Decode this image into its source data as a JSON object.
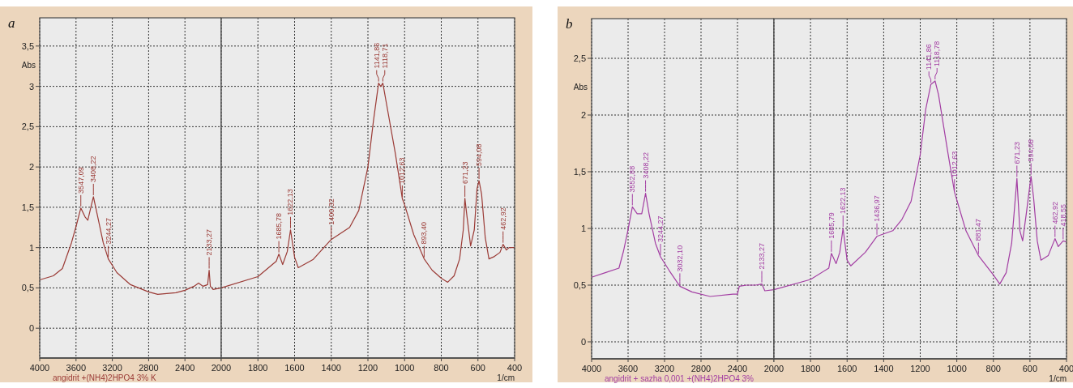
{
  "chart_data": [
    {
      "type": "line",
      "title": "a",
      "ylabel": "Abs",
      "grid": true,
      "xlim": [
        4000,
        2000
      ],
      "xticks": [
        4000,
        3600,
        3200,
        2800,
        2400,
        {
          "value": 2000,
          "label": null
        }
      ],
      "ylim": [
        -0.37,
        3.85
      ],
      "yticks": [
        0,
        {
          "value": 0.5,
          "label": "0,5"
        },
        1,
        {
          "value": 1.5,
          "label": "1,5"
        },
        2,
        {
          "value": 2.5,
          "label": "2,5"
        },
        3,
        {
          "value": 3.5,
          "label": "3,5"
        }
      ],
      "series": [
        {
          "name": "angidrit +(NH4)2HPO4 3% K",
          "color": "#9b3b36",
          "x": [
            4000,
            3850,
            3750,
            3650,
            3600,
            3547.09,
            3500,
            3470,
            3430,
            3408.22,
            3370,
            3300,
            3244.27,
            3150,
            3000,
            2800,
            2700,
            2500,
            2400,
            2300,
            2250,
            2200,
            2150,
            2133.27,
            2120,
            2090,
            2000
          ],
          "values": [
            0.6,
            0.65,
            0.74,
            1.06,
            1.26,
            1.49,
            1.38,
            1.34,
            1.53,
            1.63,
            1.43,
            1.06,
            0.86,
            0.69,
            0.54,
            0.45,
            0.42,
            0.44,
            0.47,
            0.52,
            0.56,
            0.52,
            0.54,
            0.72,
            0.52,
            0.48,
            0.5
          ]
        }
      ],
      "annotations": [
        {
          "text": "3547,09",
          "x": 3547.09,
          "y": 1.49
        },
        {
          "text": "3408,22",
          "x": 3408.22,
          "y": 1.63
        },
        {
          "text": "3244,27",
          "x": 3244.27,
          "y": 0.86
        },
        {
          "text": "2133,27",
          "x": 2133.27,
          "y": 0.72
        }
      ]
    },
    {
      "type": "line",
      "xlabel": "1/cm",
      "grid": true,
      "tick_labels": "x",
      "xlim": [
        2000,
        400
      ],
      "xticks": [
        2000,
        1800,
        1600,
        1400,
        1200,
        1000,
        800,
        600,
        400
      ],
      "ylim": [
        -0.37,
        3.85
      ],
      "yticks": [
        {
          "value": 0,
          "label": null
        },
        {
          "value": 0.5,
          "label": null
        },
        {
          "value": 1,
          "label": null
        },
        {
          "value": 1.5,
          "label": null
        },
        {
          "value": 2,
          "label": null
        },
        {
          "value": 2.5,
          "label": null
        },
        {
          "value": 3,
          "label": null
        },
        {
          "value": 3.5,
          "label": null
        }
      ],
      "series": [
        {
          "color": "#9b3b36",
          "x": [
            2000,
            1800,
            1700,
            1685.78,
            1665,
            1640,
            1622.13,
            1600,
            1580,
            1500,
            1400.32,
            1300,
            1250,
            1200,
            1170,
            1141.86,
            1130,
            1118.71,
            1100,
            1050,
            1012.63,
            1000,
            950,
            893.4,
            850,
            800,
            765,
            730,
            700,
            680,
            671.23,
            660,
            640,
            620,
            605,
            594.08,
            580,
            560,
            540,
            510,
            480,
            462.92,
            445,
            430,
            400
          ],
          "values": [
            0.5,
            0.64,
            0.83,
            0.92,
            0.79,
            0.95,
            1.22,
            0.88,
            0.75,
            0.85,
            1.1,
            1.25,
            1.46,
            2.0,
            2.57,
            3.04,
            3.0,
            3.04,
            2.8,
            2.16,
            1.61,
            1.53,
            1.16,
            0.86,
            0.72,
            0.62,
            0.57,
            0.65,
            0.86,
            1.22,
            1.61,
            1.39,
            1.02,
            1.22,
            1.73,
            1.83,
            1.66,
            1.12,
            0.86,
            0.89,
            0.94,
            1.04,
            0.97,
            1.0,
            1.0
          ]
        }
      ],
      "annotations": [
        {
          "text": "1685,78",
          "x": 1685.78,
          "y": 0.92
        },
        {
          "text": "1622,13",
          "x": 1622.13,
          "y": 1.22
        },
        {
          "text": "1400,32",
          "x": 1400.32,
          "y": 1.1
        },
        {
          "text": "1141,86",
          "x": 1141.86,
          "y": 3.04
        },
        {
          "text": "1118,71",
          "x": 1118.71,
          "y": 3.04
        },
        {
          "text": "1012,63",
          "x": 1012.63,
          "y": 1.61
        },
        {
          "text": "893,40",
          "x": 893.4,
          "y": 0.86
        },
        {
          "text": "671,23",
          "x": 671.23,
          "y": 1.61
        },
        {
          "text": "594,08",
          "x": 594.08,
          "y": 1.83
        },
        {
          "text": "462,92",
          "x": 462.92,
          "y": 1.04
        }
      ]
    },
    {
      "type": "line",
      "title": "b",
      "ylabel": "Abs",
      "grid": true,
      "xlim": [
        4000,
        2000
      ],
      "xticks": [
        4000,
        3600,
        3200,
        2800,
        2400,
        {
          "value": 2000,
          "label": null
        }
      ],
      "ylim": [
        -0.15,
        2.85
      ],
      "yticks": [
        0,
        {
          "value": 0.5,
          "label": "0,5"
        },
        1,
        {
          "value": 1.5,
          "label": "1,5"
        },
        2,
        {
          "value": 2.5,
          "label": "2,5"
        }
      ],
      "series": [
        {
          "name": "angidrit + sazha 0,001 +(NH4)2HPO4 3%",
          "color": "#a33ea3",
          "x": [
            4000,
            3850,
            3700,
            3650,
            3600,
            3552.88,
            3500,
            3450,
            3408.22,
            3370,
            3300,
            3244.27,
            3150,
            3032.1,
            2900,
            2700,
            2450,
            2400,
            2380,
            2300,
            2200,
            2133.27,
            2100,
            2000
          ],
          "values": [
            0.57,
            0.61,
            0.65,
            0.8,
            0.99,
            1.19,
            1.13,
            1.13,
            1.31,
            1.13,
            0.87,
            0.75,
            0.63,
            0.49,
            0.44,
            0.4,
            0.42,
            0.42,
            0.49,
            0.5,
            0.5,
            0.51,
            0.45,
            0.46
          ]
        }
      ],
      "annotations": [
        {
          "text": "3552,88",
          "x": 3552.88,
          "y": 1.19
        },
        {
          "text": "3408,22",
          "x": 3408.22,
          "y": 1.31
        },
        {
          "text": "3244,27",
          "x": 3244.27,
          "y": 0.75
        },
        {
          "text": "3032,10",
          "x": 3032.1,
          "y": 0.49
        },
        {
          "text": "2133,27",
          "x": 2133.27,
          "y": 0.51
        }
      ]
    },
    {
      "type": "line",
      "xlabel": "1/cm",
      "grid": true,
      "tick_labels": "x",
      "xlim": [
        2000,
        400
      ],
      "xticks": [
        2000,
        1800,
        1600,
        1400,
        1200,
        1000,
        800,
        600,
        400
      ],
      "ylim": [
        -0.15,
        2.85
      ],
      "yticks": [
        {
          "value": 0,
          "label": null
        },
        {
          "value": 0.5,
          "label": null
        },
        {
          "value": 1,
          "label": null
        },
        {
          "value": 1.5,
          "label": null
        },
        {
          "value": 2,
          "label": null
        },
        {
          "value": 2.5,
          "label": null
        }
      ],
      "series": [
        {
          "color": "#a33ea3",
          "x": [
            2000,
            1800,
            1700,
            1685.79,
            1660,
            1640,
            1622.13,
            1600,
            1580,
            1500,
            1436.97,
            1350,
            1300,
            1250,
            1200,
            1170,
            1141.86,
            1118.78,
            1100,
            1050,
            1012.63,
            950,
            881.47,
            800,
            765,
            730,
            700,
            671.23,
            655,
            640,
            620,
            594.08,
            580,
            560,
            540,
            500,
            462.92,
            445,
            418.55,
            400
          ],
          "values": [
            0.46,
            0.55,
            0.65,
            0.78,
            0.69,
            0.79,
            1.0,
            0.72,
            0.67,
            0.79,
            0.93,
            0.98,
            1.08,
            1.24,
            1.65,
            2.05,
            2.27,
            2.3,
            2.18,
            1.68,
            1.32,
            0.98,
            0.76,
            0.59,
            0.51,
            0.61,
            0.87,
            1.44,
            0.98,
            0.89,
            1.13,
            1.46,
            1.27,
            0.89,
            0.72,
            0.76,
            0.91,
            0.84,
            0.89,
            0.88
          ]
        }
      ],
      "annotations": [
        {
          "text": "1685,79",
          "x": 1685.79,
          "y": 0.78
        },
        {
          "text": "1622,13",
          "x": 1622.13,
          "y": 1.0
        },
        {
          "text": "1436,97",
          "x": 1436.97,
          "y": 0.93
        },
        {
          "text": "1141,86",
          "x": 1141.86,
          "y": 2.27
        },
        {
          "text": "1118,78",
          "x": 1118.78,
          "y": 2.3
        },
        {
          "text": "1012,63",
          "x": 1012.63,
          "y": 1.32
        },
        {
          "text": "881,47",
          "x": 881.47,
          "y": 0.76
        },
        {
          "text": "671,23",
          "x": 671.23,
          "y": 1.44
        },
        {
          "text": "594,08",
          "x": 594.08,
          "y": 1.46
        },
        {
          "text": "462,92",
          "x": 462.92,
          "y": 0.91
        },
        {
          "text": "418,55",
          "x": 418.55,
          "y": 0.89
        }
      ]
    }
  ]
}
